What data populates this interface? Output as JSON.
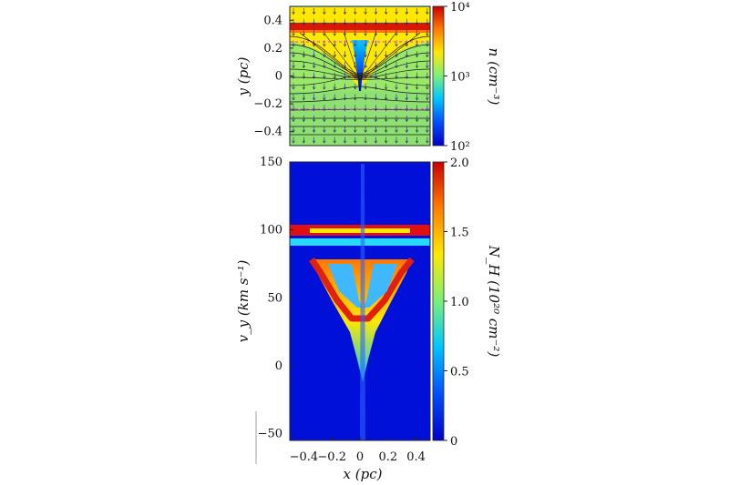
{
  "chart_data": [
    {
      "type": "heatmap",
      "panel": "top",
      "title": "",
      "xlim": [
        -0.5,
        0.5
      ],
      "ylim": [
        -0.5,
        0.5
      ],
      "ylabel": "y (pc)",
      "yticks": [
        "0.4",
        "0.2",
        "0",
        "−0.2",
        "−0.4"
      ],
      "ytick_values": [
        0.4,
        0.2,
        0,
        -0.2,
        -0.4
      ],
      "colorbar": {
        "label": "n (cm⁻³)",
        "scale": "log",
        "range": [
          100,
          10000
        ],
        "ticks": [
          "10⁴",
          "10³",
          "10²"
        ],
        "tick_values": [
          10000,
          1000,
          100
        ],
        "colors": [
          "#0000c8",
          "#0050ff",
          "#00c8ff",
          "#7af07a",
          "#ffe800",
          "#ff7800",
          "#c80000"
        ]
      },
      "features": [
        "field lines",
        "velocity arrows",
        "dense shock layer at y≈0.38",
        "low-density funnel at x≈0"
      ]
    },
    {
      "type": "heatmap",
      "panel": "bottom",
      "title": "",
      "xlim": [
        -0.5,
        0.5
      ],
      "ylim": [
        -55,
        150
      ],
      "xlabel": "x (pc)",
      "ylabel": "v_y (km s⁻¹)",
      "xticks": [
        "−0.4",
        "−0.2",
        "0",
        "0.2",
        "0.4"
      ],
      "xtick_values": [
        -0.4,
        -0.2,
        0,
        0.2,
        0.4
      ],
      "yticks": [
        "150",
        "100",
        "50",
        "0",
        "−50"
      ],
      "ytick_values": [
        150,
        100,
        50,
        0,
        -50
      ],
      "colorbar": {
        "label": "N_H (10²⁰ cm⁻²)",
        "scale": "linear",
        "range": [
          0,
          2.0
        ],
        "ticks": [
          "2.0",
          "1.5",
          "1.0",
          "0.5",
          "0"
        ],
        "tick_values": [
          2.0,
          1.5,
          1.0,
          0.5,
          0
        ],
        "colors": [
          "#0000c8",
          "#0050ff",
          "#00c8ff",
          "#7af07a",
          "#ffe800",
          "#ff7800",
          "#c80000"
        ]
      },
      "features": [
        "bright band at v_y≈100",
        "cyan band at v_y≈92",
        "V-shaped emission narrowing toward v_y≈0"
      ]
    }
  ]
}
